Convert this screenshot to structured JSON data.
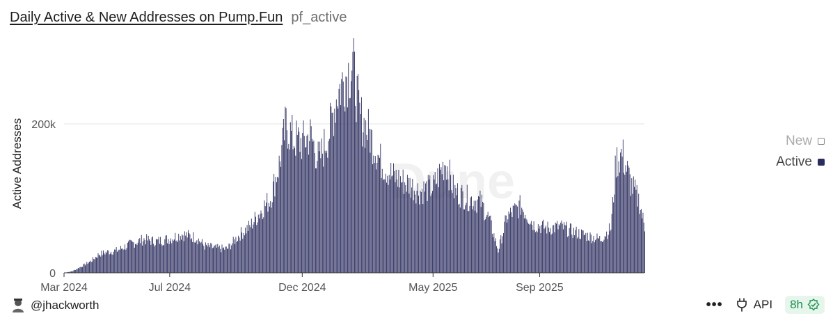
{
  "header": {
    "title": "Daily Active & New Addresses on Pump.Fun",
    "query_name": "pf_active"
  },
  "chart_data": {
    "type": "bar",
    "x_start": "2024-03-01",
    "x_end": "2025-12-31",
    "x_ticks": [
      "Mar 2024",
      "Jul 2024",
      "Dec 2024",
      "May 2025",
      "Sep 2025"
    ],
    "y_ticks": [
      "0",
      "200k"
    ],
    "ylabel": "Active Addresses",
    "ylim": [
      0,
      300000
    ],
    "grid": true,
    "legend_position": "right",
    "watermark": "Dune",
    "series": [
      {
        "name": "New",
        "visible": false,
        "values": []
      },
      {
        "name": "Active",
        "visible": true,
        "color": "#2b2c5e",
        "points": [
          [
            "2024-03-01",
            0
          ],
          [
            "2024-03-10",
            2000
          ],
          [
            "2024-03-20",
            8000
          ],
          [
            "2024-04-01",
            16000
          ],
          [
            "2024-04-10",
            25000
          ],
          [
            "2024-04-20",
            28000
          ],
          [
            "2024-05-01",
            30000
          ],
          [
            "2024-05-15",
            38000
          ],
          [
            "2024-06-01",
            45000
          ],
          [
            "2024-06-15",
            42000
          ],
          [
            "2024-07-01",
            46000
          ],
          [
            "2024-07-15",
            52000
          ],
          [
            "2024-08-01",
            47000
          ],
          [
            "2024-08-10",
            36000
          ],
          [
            "2024-08-25",
            33000
          ],
          [
            "2024-09-05",
            32000
          ],
          [
            "2024-09-20",
            52000
          ],
          [
            "2024-10-01",
            62000
          ],
          [
            "2024-10-15",
            85000
          ],
          [
            "2024-10-25",
            100000
          ],
          [
            "2024-11-05",
            150000
          ],
          [
            "2024-11-12",
            200000
          ],
          [
            "2024-11-20",
            180000
          ],
          [
            "2024-12-01",
            175000
          ],
          [
            "2024-12-10",
            185000
          ],
          [
            "2024-12-20",
            150000
          ],
          [
            "2025-01-01",
            190000
          ],
          [
            "2025-01-10",
            240000
          ],
          [
            "2025-01-20",
            265000
          ],
          [
            "2025-01-28",
            280000
          ],
          [
            "2025-02-05",
            210000
          ],
          [
            "2025-02-15",
            190000
          ],
          [
            "2025-03-01",
            150000
          ],
          [
            "2025-03-15",
            130000
          ],
          [
            "2025-04-01",
            120000
          ],
          [
            "2025-04-15",
            110000
          ],
          [
            "2025-05-01",
            115000
          ],
          [
            "2025-05-15",
            150000
          ],
          [
            "2025-05-25",
            110000
          ],
          [
            "2025-06-10",
            100000
          ],
          [
            "2025-06-25",
            95000
          ],
          [
            "2025-07-05",
            70000
          ],
          [
            "2025-07-15",
            30000
          ],
          [
            "2025-07-25",
            75000
          ],
          [
            "2025-08-10",
            90000
          ],
          [
            "2025-08-25",
            65000
          ],
          [
            "2025-09-10",
            60000
          ],
          [
            "2025-09-25",
            62000
          ],
          [
            "2025-10-10",
            55000
          ],
          [
            "2025-10-25",
            50000
          ],
          [
            "2025-11-10",
            45000
          ],
          [
            "2025-11-22",
            60000
          ],
          [
            "2025-11-28",
            150000
          ],
          [
            "2025-12-05",
            160000
          ],
          [
            "2025-12-15",
            120000
          ],
          [
            "2025-12-25",
            95000
          ],
          [
            "2025-12-31",
            60000
          ]
        ]
      }
    ]
  },
  "footer": {
    "author": "@jhackworth",
    "api_label": "API",
    "refresh_badge": "8h",
    "more_icon": "more-dots-icon",
    "api_icon": "plug-icon",
    "check_icon": "verified-check-icon"
  }
}
